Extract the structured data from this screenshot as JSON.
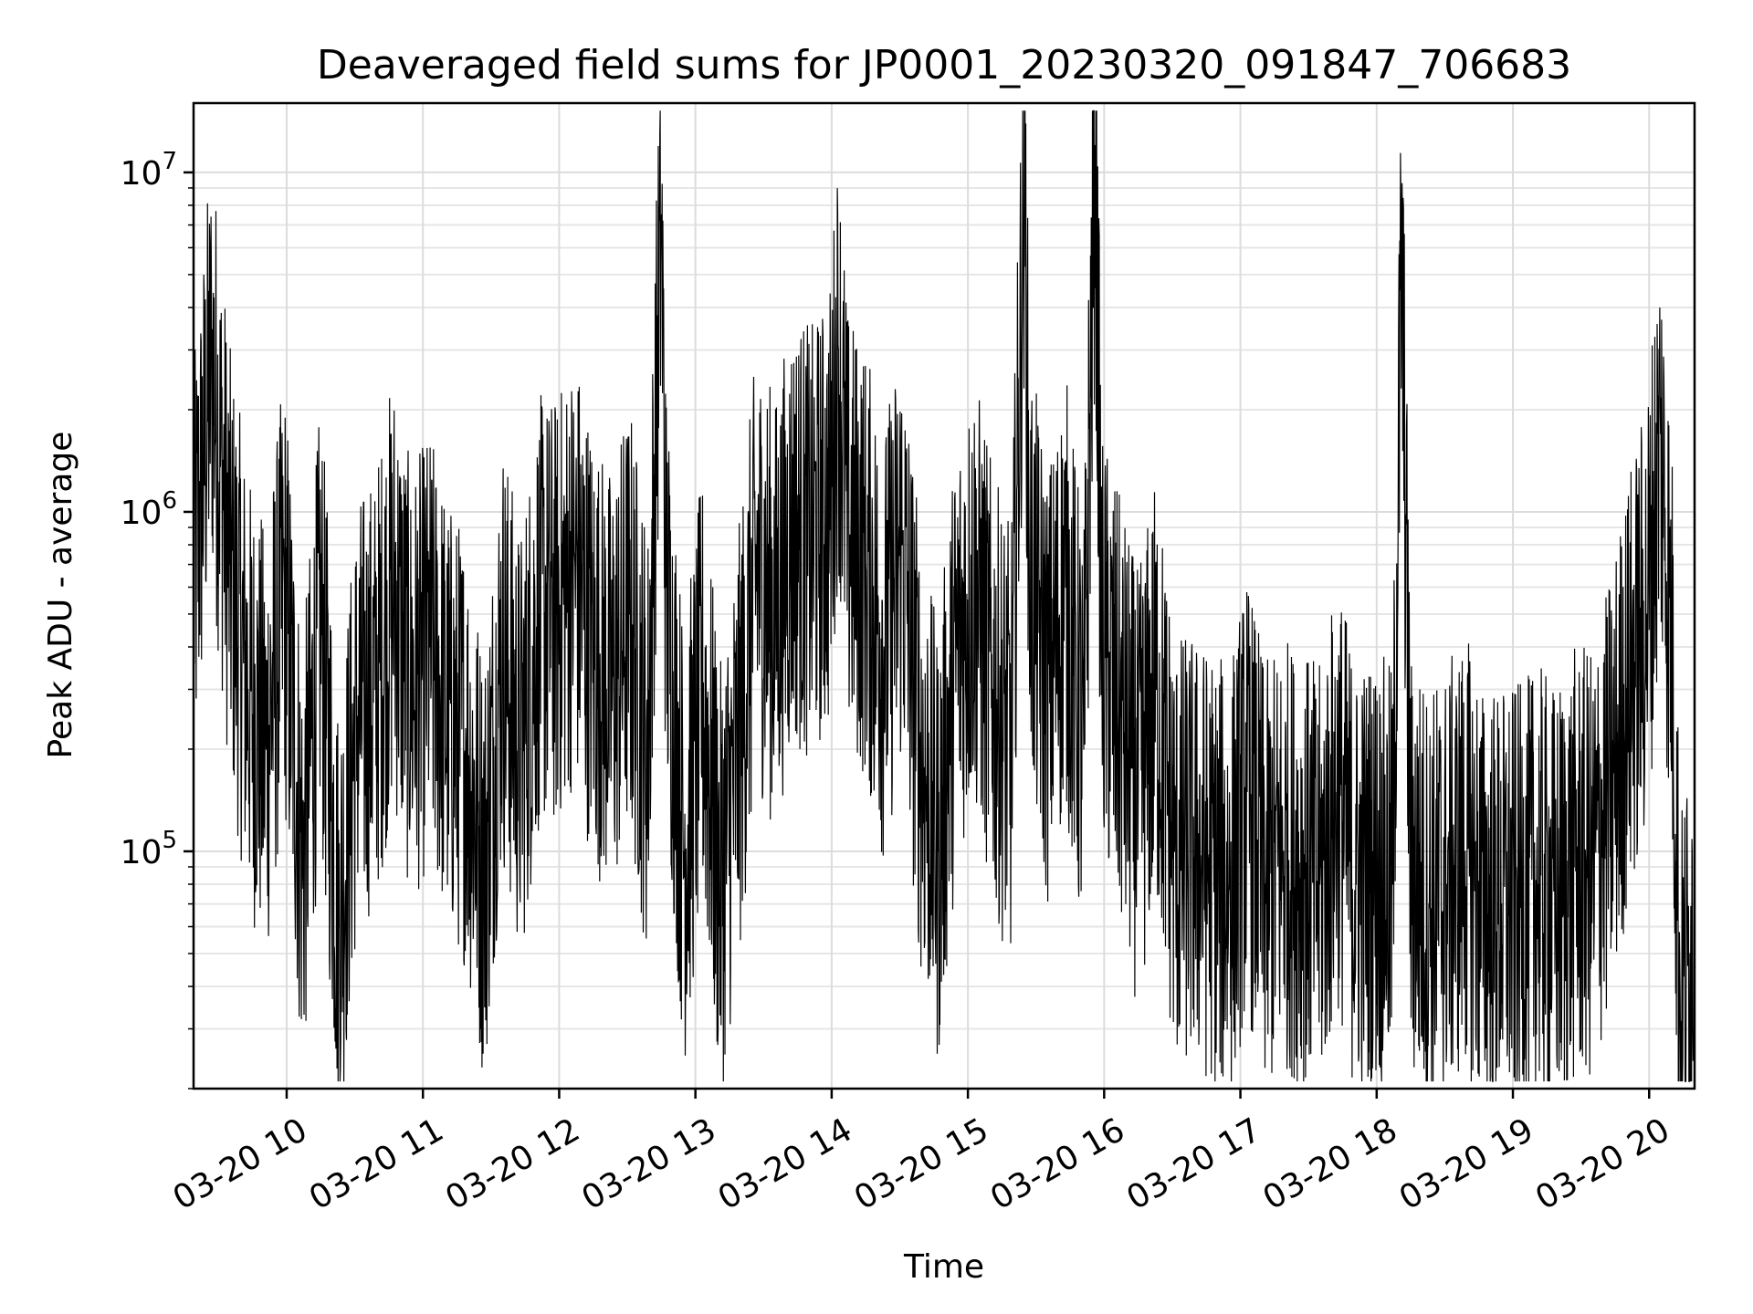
{
  "chart_data": {
    "type": "line",
    "title": "Deaveraged field sums for JP0001_20230320_091847_706683",
    "xlabel": "Time",
    "ylabel": "Peak ADU - average",
    "yscale": "log",
    "ylim": [
      20000,
      16000000
    ],
    "xlim": [
      "03-20 09:19",
      "03-20 20:20"
    ],
    "grid": true,
    "line_color": "#000000",
    "x_ticks": [
      {
        "label": "03-20 10",
        "value": "03-20 10:00"
      },
      {
        "label": "03-20 11",
        "value": "03-20 11:00"
      },
      {
        "label": "03-20 12",
        "value": "03-20 12:00"
      },
      {
        "label": "03-20 13",
        "value": "03-20 13:00"
      },
      {
        "label": "03-20 14",
        "value": "03-20 14:00"
      },
      {
        "label": "03-20 15",
        "value": "03-20 15:00"
      },
      {
        "label": "03-20 16",
        "value": "03-20 16:00"
      },
      {
        "label": "03-20 17",
        "value": "03-20 17:00"
      },
      {
        "label": "03-20 18",
        "value": "03-20 18:00"
      },
      {
        "label": "03-20 19",
        "value": "03-20 19:00"
      },
      {
        "label": "03-20 20",
        "value": "03-20 20:00"
      }
    ],
    "y_ticks": [
      {
        "base": "10",
        "exp": "5",
        "value": 100000
      },
      {
        "base": "10",
        "exp": "6",
        "value": 1000000
      },
      {
        "base": "10",
        "exp": "7",
        "value": 10000000
      }
    ],
    "series": [
      {
        "name": "",
        "x": [
          "03-20 09:19",
          "03-20 09:27",
          "03-20 09:35",
          "03-20 09:43",
          "03-20 09:51",
          "03-20 09:59",
          "03-20 10:07",
          "03-20 10:15",
          "03-20 10:23",
          "03-20 10:31",
          "03-20 10:39",
          "03-20 10:47",
          "03-20 10:55",
          "03-20 11:03",
          "03-20 11:11",
          "03-20 11:19",
          "03-20 11:27",
          "03-20 11:35",
          "03-20 11:43",
          "03-20 11:51",
          "03-20 11:59",
          "03-20 12:07",
          "03-20 12:15",
          "03-20 12:23",
          "03-20 12:31",
          "03-20 12:39",
          "03-20 12:45",
          "03-20 12:47",
          "03-20 12:55",
          "03-20 13:03",
          "03-20 13:11",
          "03-20 13:19",
          "03-20 13:27",
          "03-20 13:35",
          "03-20 13:43",
          "03-20 13:51",
          "03-20 13:59",
          "03-20 14:03",
          "03-20 14:07",
          "03-20 14:15",
          "03-20 14:23",
          "03-20 14:31",
          "03-20 14:39",
          "03-20 14:47",
          "03-20 14:55",
          "03-20 15:03",
          "03-20 15:11",
          "03-20 15:19",
          "03-20 15:25",
          "03-20 15:27",
          "03-20 15:35",
          "03-20 15:43",
          "03-20 15:51",
          "03-20 15:56",
          "03-20 15:59",
          "03-20 16:07",
          "03-20 16:15",
          "03-20 16:23",
          "03-20 16:31",
          "03-20 16:39",
          "03-20 16:47",
          "03-20 16:55",
          "03-20 17:03",
          "03-20 17:11",
          "03-20 17:19",
          "03-20 17:27",
          "03-20 17:35",
          "03-20 17:43",
          "03-20 17:51",
          "03-20 17:59",
          "03-20 18:07",
          "03-20 18:11",
          "03-20 18:15",
          "03-20 18:23",
          "03-20 18:31",
          "03-20 18:39",
          "03-20 18:47",
          "03-20 18:55",
          "03-20 19:03",
          "03-20 19:11",
          "03-20 19:19",
          "03-20 19:27",
          "03-20 19:35",
          "03-20 19:43",
          "03-20 19:51",
          "03-20 19:59",
          "03-20 20:05",
          "03-20 20:10",
          "03-20 20:14",
          "03-20 20:18",
          "03-20 20:20"
        ],
        "y": [
          600000,
          2800000,
          700000,
          300000,
          200000,
          600000,
          90000,
          500000,
          60000,
          250000,
          300000,
          600000,
          300000,
          400000,
          250000,
          200000,
          90000,
          400000,
          200000,
          500000,
          500000,
          700000,
          400000,
          300000,
          500000,
          200000,
          7500000,
          600000,
          100000,
          300000,
          80000,
          200000,
          700000,
          500000,
          900000,
          800000,
          1000000,
          3000000,
          900000,
          700000,
          400000,
          800000,
          200000,
          100000,
          400000,
          600000,
          300000,
          200000,
          10500000,
          700000,
          300000,
          600000,
          200000,
          12000000,
          400000,
          250000,
          150000,
          300000,
          100000,
          100000,
          90000,
          80000,
          150000,
          80000,
          100000,
          90000,
          80000,
          150000,
          80000,
          90000,
          80000,
          5800000,
          90000,
          70000,
          80000,
          100000,
          70000,
          70000,
          70000,
          80000,
          70000,
          90000,
          90000,
          150000,
          300000,
          500000,
          1700000,
          400000,
          30000,
          50000,
          70000
        ]
      }
    ]
  }
}
